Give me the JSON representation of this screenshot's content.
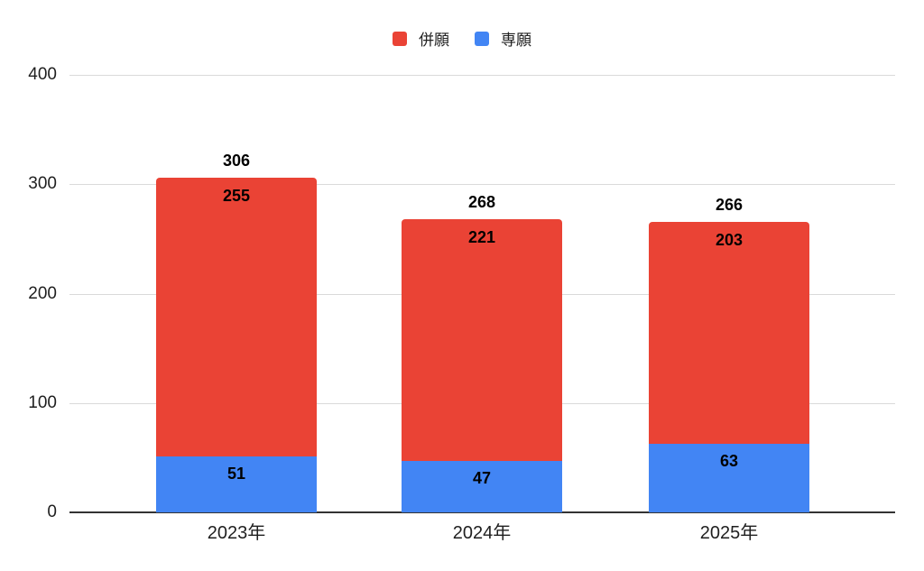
{
  "chart_data": {
    "type": "bar",
    "stacked": true,
    "categories": [
      "2023年",
      "2024年",
      "2025年"
    ],
    "series": [
      {
        "name": "併願",
        "color": "#EA4335",
        "stack_position": "top",
        "values": [
          255,
          221,
          203
        ]
      },
      {
        "name": "専願",
        "color": "#4285F4",
        "stack_position": "bottom",
        "values": [
          51,
          47,
          63
        ]
      }
    ],
    "totals": [
      306,
      268,
      266
    ],
    "ylim": [
      0,
      400
    ],
    "yticks": [
      0,
      100,
      200,
      300,
      400
    ],
    "grid": true,
    "legend_position": "top-center",
    "colors": {
      "gridline": "#dadada",
      "axis_line": "#333333",
      "value_label": "#000000",
      "tick_label": "#1f1f1f"
    }
  }
}
